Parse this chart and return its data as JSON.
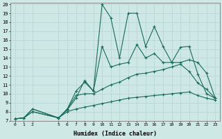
{
  "xlabel": "Humidex (Indice chaleur)",
  "bg_color": "#cde8e5",
  "grid_color": "#b8d8d5",
  "line_color": "#1a6b5a",
  "xlim": [
    -0.5,
    23.5
  ],
  "ylim": [
    7,
    20.2
  ],
  "xticks": [
    0,
    1,
    2,
    5,
    6,
    7,
    8,
    9,
    10,
    11,
    12,
    13,
    14,
    15,
    16,
    17,
    18,
    19,
    20,
    21,
    22,
    23
  ],
  "yticks": [
    7,
    8,
    9,
    10,
    11,
    12,
    13,
    14,
    15,
    16,
    17,
    18,
    19,
    20
  ],
  "line1_x": [
    0,
    1,
    2,
    5,
    6,
    7,
    8,
    9,
    10,
    11,
    12,
    13,
    14,
    15,
    16,
    17,
    18,
    19,
    20,
    21,
    22,
    23
  ],
  "line1_y": [
    7.2,
    7.3,
    8.3,
    7.3,
    8.2,
    9.5,
    11.5,
    10.3,
    20.0,
    18.5,
    14.0,
    19.0,
    19.0,
    15.3,
    17.5,
    15.3,
    13.5,
    15.2,
    15.3,
    12.2,
    10.0,
    9.5
  ],
  "line2_x": [
    0,
    1,
    2,
    5,
    6,
    7,
    8,
    9,
    10,
    11,
    12,
    13,
    14,
    15,
    16,
    17,
    18,
    19,
    20,
    21,
    22,
    23
  ],
  "line2_y": [
    7.2,
    7.3,
    8.3,
    7.3,
    8.3,
    10.3,
    11.3,
    10.3,
    15.3,
    13.0,
    13.3,
    13.5,
    15.5,
    14.0,
    14.5,
    13.5,
    13.5,
    13.5,
    13.8,
    13.5,
    12.3,
    9.5
  ],
  "line3_x": [
    0,
    1,
    2,
    5,
    6,
    7,
    8,
    9,
    10,
    11,
    12,
    13,
    14,
    15,
    16,
    17,
    18,
    19,
    20,
    21,
    22,
    23
  ],
  "line3_y": [
    7.2,
    7.3,
    8.0,
    7.3,
    8.3,
    9.8,
    10.0,
    10.0,
    10.5,
    11.0,
    11.3,
    11.8,
    12.2,
    12.3,
    12.5,
    12.7,
    13.0,
    13.3,
    12.5,
    11.2,
    10.5,
    9.5
  ],
  "line4_x": [
    0,
    1,
    2,
    5,
    6,
    7,
    8,
    9,
    10,
    11,
    12,
    13,
    14,
    15,
    16,
    17,
    18,
    19,
    20,
    21,
    22,
    23
  ],
  "line4_y": [
    7.2,
    7.3,
    8.0,
    7.3,
    8.0,
    8.3,
    8.5,
    8.7,
    8.9,
    9.1,
    9.3,
    9.5,
    9.6,
    9.7,
    9.8,
    9.9,
    10.0,
    10.1,
    10.2,
    9.8,
    9.5,
    9.3
  ]
}
